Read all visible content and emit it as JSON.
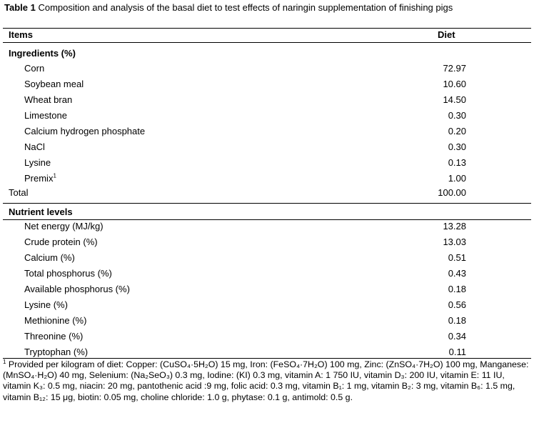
{
  "caption": {
    "label": "Table 1",
    "text": " Composition and analysis of the basal diet to test effects of naringin supplementation of finishing pigs"
  },
  "header": {
    "items": "Items",
    "diet": "Diet"
  },
  "ingredients": {
    "title": "Ingredients (%)",
    "rows": [
      {
        "name": "Corn",
        "value": "72.97"
      },
      {
        "name": "Soybean meal",
        "value": "10.60"
      },
      {
        "name": "Wheat bran",
        "value": "14.50"
      },
      {
        "name": "Limestone",
        "value": "0.30"
      },
      {
        "name": "Calcium hydrogen phosphate",
        "value": "0.20"
      },
      {
        "name": "NaCl",
        "value": "0.30"
      },
      {
        "name": "Lysine",
        "value": "0.13"
      },
      {
        "name": "Premix",
        "sup": "1",
        "value": "1.00"
      }
    ],
    "total_label": "Total",
    "total_value": "100.00"
  },
  "nutrients": {
    "title": "Nutrient levels",
    "rows": [
      {
        "name": "Net energy (MJ/kg)",
        "value": "13.28"
      },
      {
        "name": "Crude protein (%)",
        "value": "13.03"
      },
      {
        "name": "Calcium (%)",
        "value": "0.51"
      },
      {
        "name": "Total phosphorus (%)",
        "value": "0.43"
      },
      {
        "name": "Available phosphorus (%)",
        "value": "0.18"
      },
      {
        "name": "Lysine (%)",
        "value": "0.56"
      },
      {
        "name": "Methionine (%)",
        "value": "0.18"
      },
      {
        "name": "Threonine (%)",
        "value": "0.34"
      },
      {
        "name": "Tryptophan (%)",
        "value": "0.11"
      }
    ]
  },
  "footnote": {
    "mark": "1",
    "text": " Provided per kilogram of diet: Copper: (CuSO₄·5H₂O) 15 mg, Iron: (FeSO₄·7H₂O) 100 mg, Zinc: (ZnSO₄·7H₂O) 100 mg, Manganese: (MnSO₄·H₂O) 40 mg, Selenium: (Na₂SeO₃) 0.3 mg, Iodine: (KI) 0.3 mg, vitamin A: 1 750 IU, vitamin D₃: 200 IU, vitamin E: 11 IU, vitamin K₃: 0.5 mg, niacin: 20 mg, pantothenic acid :9 mg, folic acid: 0.3 mg, vitamin B₁: 1 mg, vitamin B₂: 3 mg, vitamin B₆: 1.5 mg, vitamin B₁₂: 15 μg, biotin: 0.05 mg, choline chloride: 1.0 g, phytase: 0.1 g, antimold: 0.5 g."
  }
}
